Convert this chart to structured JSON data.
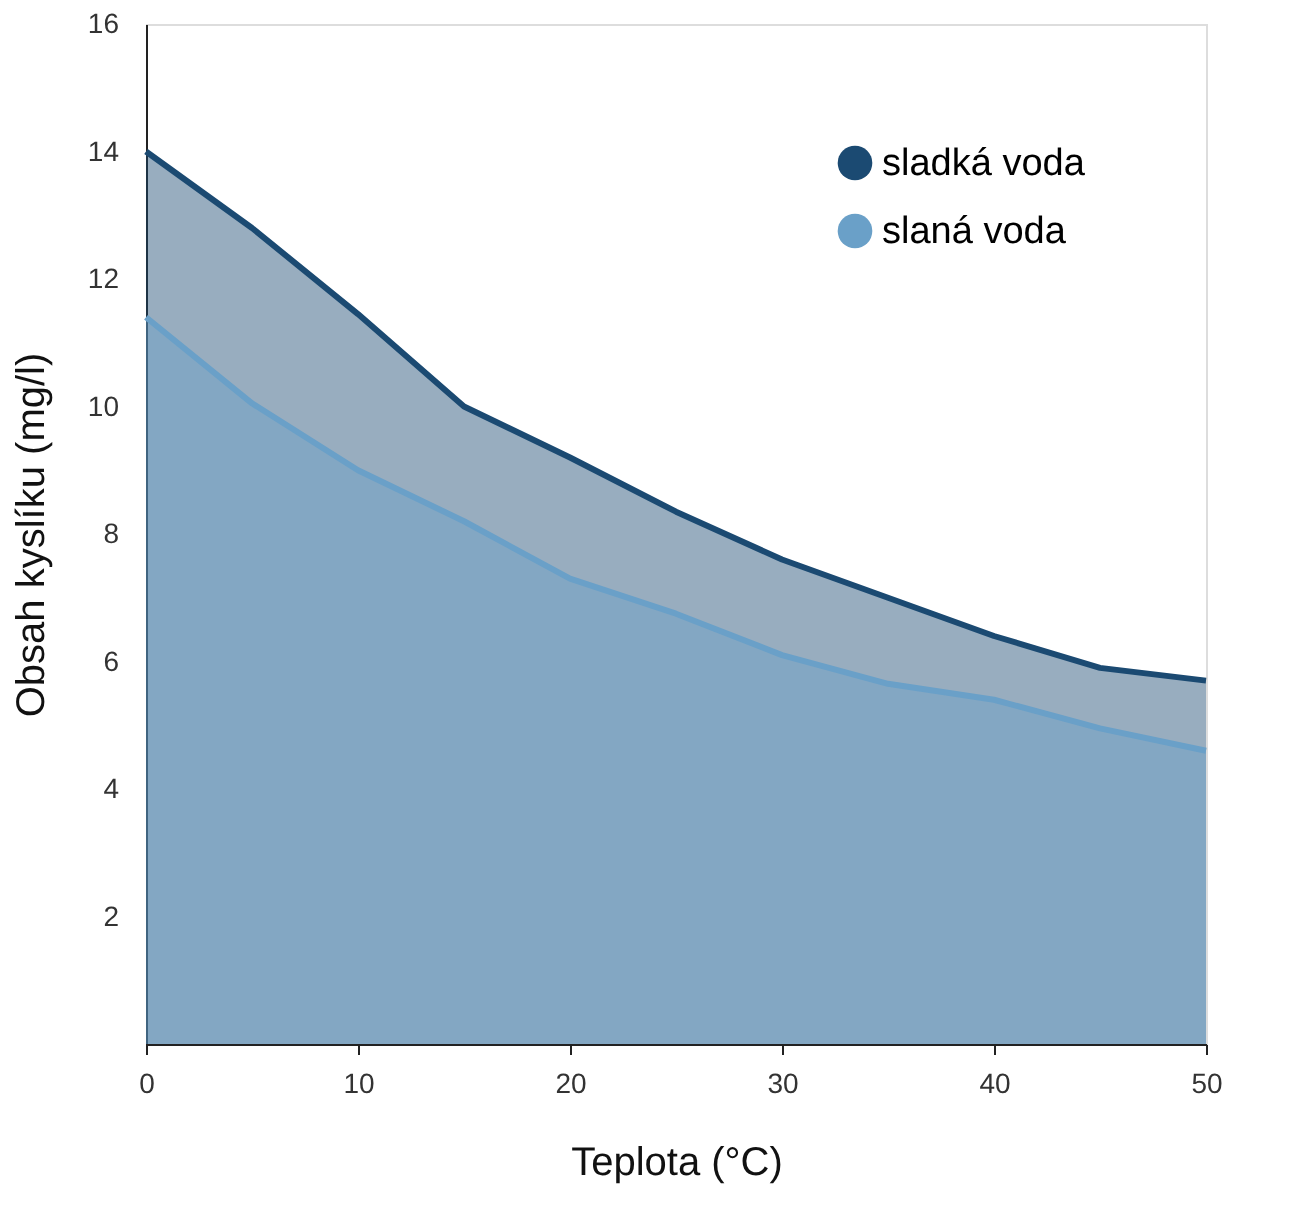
{
  "chart_data": {
    "type": "area",
    "xlabel": "Teplota (°C)",
    "ylabel": "Obsah kyslíku (mg/l)",
    "x": [
      0,
      5,
      10,
      15,
      20,
      25,
      30,
      35,
      40,
      45,
      50
    ],
    "series": [
      {
        "name": "sladká voda",
        "color": "#1b4a72",
        "values": [
          14.0,
          12.8,
          11.45,
          10.0,
          9.2,
          8.35,
          7.6,
          7.0,
          6.4,
          5.9,
          5.7
        ]
      },
      {
        "name": "slaná voda",
        "color": "#6aa0c8",
        "values": [
          11.4,
          10.05,
          9.0,
          8.2,
          7.3,
          6.75,
          6.1,
          5.65,
          5.4,
          4.95,
          4.6
        ]
      }
    ],
    "xlim": [
      0,
      50
    ],
    "xticks": [
      0,
      10,
      20,
      30,
      40,
      50
    ],
    "ylim": [
      0,
      16
    ],
    "yticks": [
      2,
      4,
      6,
      8,
      10,
      12,
      14,
      16
    ],
    "grid": false,
    "legend": "top right"
  }
}
